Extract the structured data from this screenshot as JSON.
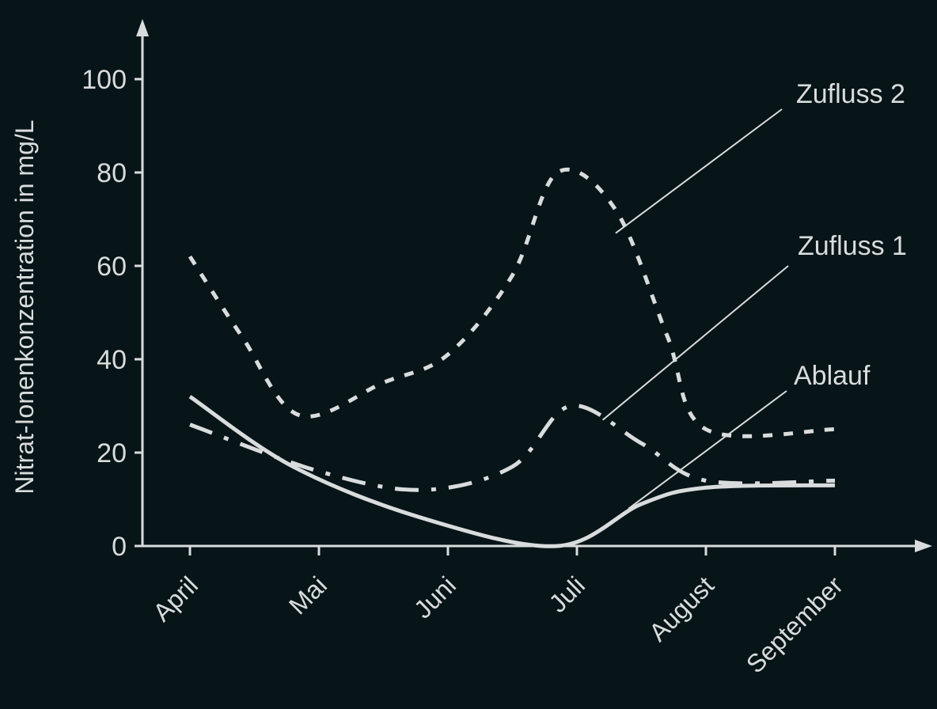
{
  "colors": {
    "background": "#071418",
    "ink": "#d9dcdc"
  },
  "chart_data": {
    "type": "line",
    "title": "",
    "xlabel": "",
    "ylabel": "Nitrat-Ionenkonzentration in mg/L",
    "categories": [
      "April",
      "Mai",
      "Juni",
      "Juli",
      "August",
      "September"
    ],
    "yticks": [
      0,
      20,
      40,
      60,
      80,
      100
    ],
    "ylim": [
      0,
      110
    ],
    "grid": false,
    "series": [
      {
        "name": "Zufluss 2",
        "style": "dotted",
        "points": [
          {
            "x": 0,
            "y": 62
          },
          {
            "x": 0.4,
            "y": 45
          },
          {
            "x": 0.85,
            "y": 28
          },
          {
            "x": 1.5,
            "y": 35
          },
          {
            "x": 2,
            "y": 41
          },
          {
            "x": 2.5,
            "y": 58
          },
          {
            "x": 2.85,
            "y": 80
          },
          {
            "x": 3.3,
            "y": 72
          },
          {
            "x": 3.7,
            "y": 45
          },
          {
            "x": 4,
            "y": 25
          },
          {
            "x": 5,
            "y": 25
          }
        ]
      },
      {
        "name": "Zufluss 1",
        "style": "dash-dot",
        "points": [
          {
            "x": 0,
            "y": 26
          },
          {
            "x": 1,
            "y": 16
          },
          {
            "x": 1.8,
            "y": 12
          },
          {
            "x": 2.5,
            "y": 17
          },
          {
            "x": 2.95,
            "y": 30
          },
          {
            "x": 3.5,
            "y": 22
          },
          {
            "x": 4,
            "y": 14
          },
          {
            "x": 5,
            "y": 14
          }
        ]
      },
      {
        "name": "Ablauf",
        "style": "solid",
        "points": [
          {
            "x": 0,
            "y": 32
          },
          {
            "x": 0.8,
            "y": 17
          },
          {
            "x": 1.8,
            "y": 6
          },
          {
            "x": 2.85,
            "y": 0
          },
          {
            "x": 3.5,
            "y": 9
          },
          {
            "x": 4,
            "y": 12.5
          },
          {
            "x": 5,
            "y": 13
          }
        ]
      }
    ],
    "annotations": [
      {
        "series": "Zufluss 2",
        "label": "Zufluss 2",
        "at_x": 3.3,
        "at_y": 67
      },
      {
        "series": "Zufluss 1",
        "label": "Zufluss 1",
        "at_x": 3.2,
        "at_y": 27
      },
      {
        "series": "Ablauf",
        "label": "Ablauf",
        "at_x": 3.4,
        "at_y": 8
      }
    ]
  }
}
